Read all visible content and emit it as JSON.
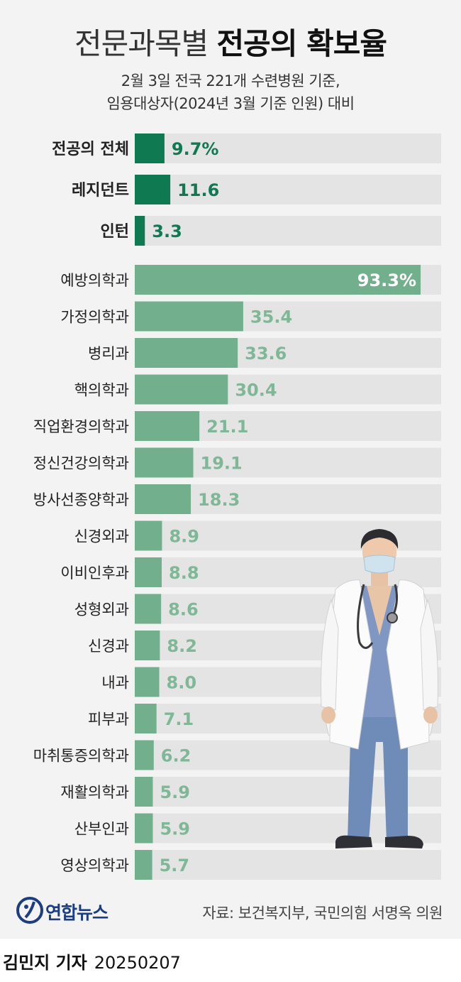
{
  "title": {
    "light": "전문과목별",
    "bold": "전공의 확보율"
  },
  "subtitle": {
    "line1": "2월 3일 전국 221개 수련병원 기준,",
    "line2": "임용대상자(2024년 3월 기준 인원) 대비"
  },
  "colors": {
    "highlight": "#0f7a52",
    "bar": "#72b08d",
    "track": "#e4e4e4",
    "label_light": "#7fb896",
    "label_dark": "#0f7a52"
  },
  "chart_data": {
    "type": "bar",
    "orientation": "horizontal",
    "unit": "%",
    "xlim": [
      0,
      100
    ],
    "groups": [
      {
        "name": "summary",
        "categories": [
          "전공의 전체",
          "레지던트",
          "인턴"
        ],
        "values": [
          9.7,
          11.6,
          3.3
        ],
        "value_labels": [
          "9.7%",
          "11.6",
          "3.3"
        ]
      },
      {
        "name": "specialties",
        "categories": [
          "예방의학과",
          "가정의학과",
          "병리과",
          "핵의학과",
          "직업환경의학과",
          "정신건강의학과",
          "방사선종양학과",
          "신경외과",
          "이비인후과",
          "성형외과",
          "신경과",
          "내과",
          "피부과",
          "마취통증의학과",
          "재활의학과",
          "산부인과",
          "영상의학과"
        ],
        "values": [
          93.3,
          35.4,
          33.6,
          30.4,
          21.1,
          19.1,
          18.3,
          8.9,
          8.8,
          8.6,
          8.2,
          8.0,
          7.1,
          6.2,
          5.9,
          5.9,
          5.7
        ],
        "value_labels": [
          "93.3%",
          "35.4",
          "33.6",
          "30.4",
          "21.1",
          "19.1",
          "18.3",
          "8.9",
          "8.8",
          "8.6",
          "8.2",
          "8.0",
          "7.1",
          "6.2",
          "5.9",
          "5.9",
          "5.7"
        ]
      }
    ]
  },
  "logo": {
    "text": "연합뉴스",
    "icon": "yonhap-logo-icon"
  },
  "source": "자료: 보건복지부, 국민의힘 서명옥 의원",
  "credit": {
    "name": "김민지 기자",
    "date": "20250207"
  },
  "illustration": "doctor-illustration"
}
